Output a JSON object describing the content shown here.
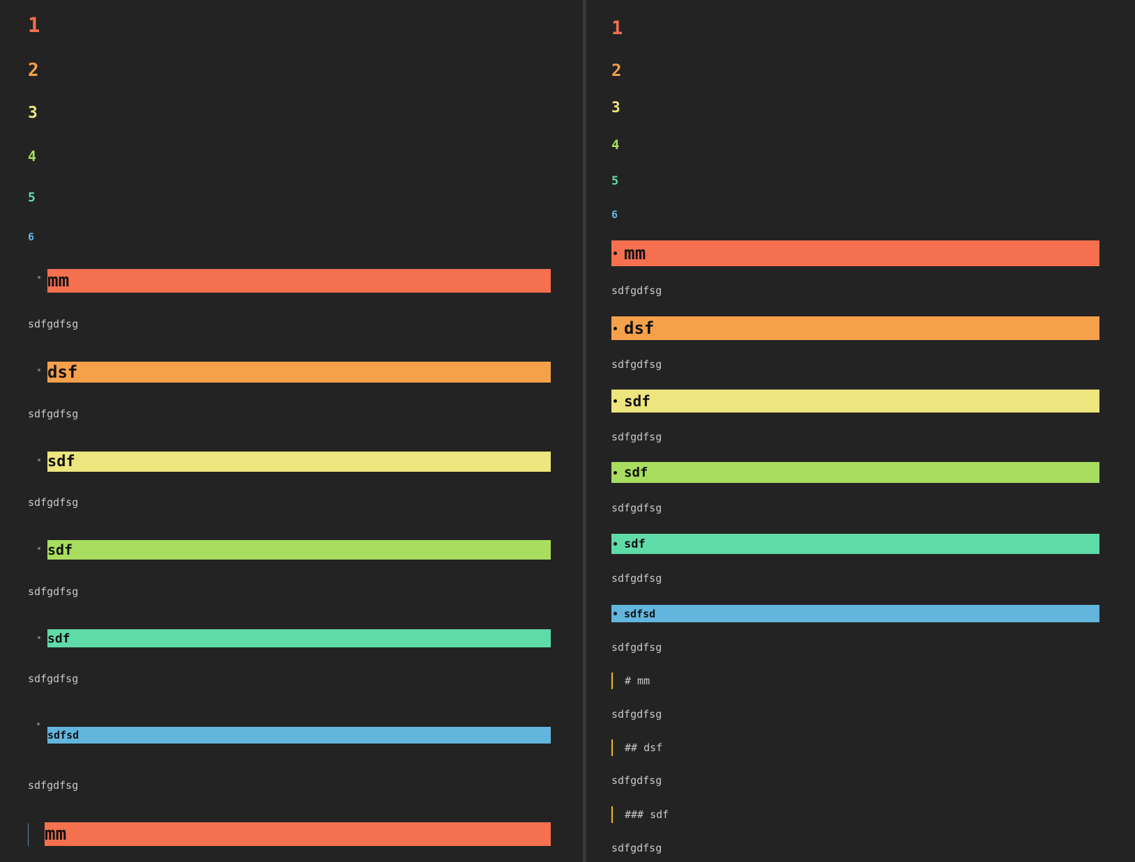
{
  "colors": {
    "h1": "#f4704f",
    "h2": "#f5a04a",
    "h3": "#ede57d",
    "h4": "#a8dd60",
    "h5": "#5fdba8",
    "h6": "#62b6de",
    "background": "#232323",
    "quote_border": "#f0b429"
  },
  "left": {
    "numbers": [
      "1",
      "2",
      "3",
      "4",
      "5",
      "6"
    ],
    "headings": [
      "mm",
      "dsf",
      "sdf",
      "sdf",
      "sdf",
      "sdfsd",
      "mm"
    ],
    "paragraph": "sdfgdfsg"
  },
  "right": {
    "numbers": [
      "1",
      "2",
      "3",
      "4",
      "5",
      "6"
    ],
    "headings": [
      "mm",
      "dsf",
      "sdf",
      "sdf",
      "sdf",
      "sdfsd"
    ],
    "paragraph": "sdfgdfsg",
    "quotes": [
      "# mm",
      "## dsf",
      "### sdf"
    ]
  }
}
